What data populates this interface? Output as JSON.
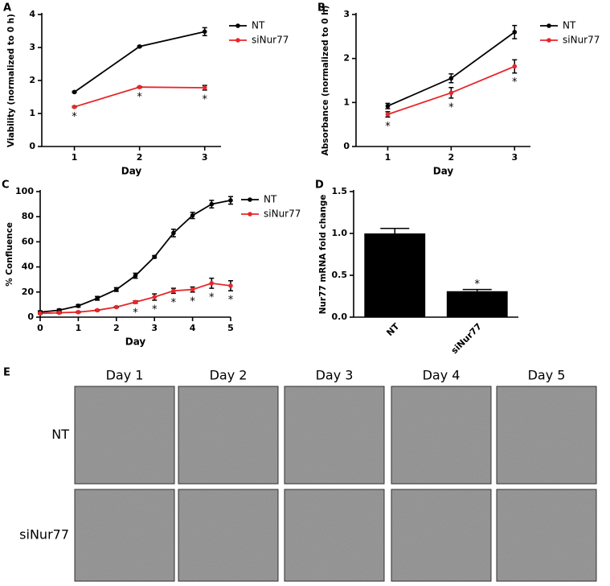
{
  "chart_data": [
    {
      "type": "line",
      "panel_label": "A",
      "xlabel": "Day",
      "ylabel": "Viability (normalized to 0 h)",
      "x": [
        1,
        2,
        3
      ],
      "xlim": [
        0.5,
        3.25
      ],
      "xticks": [
        1,
        2,
        3
      ],
      "ylim": [
        0,
        4
      ],
      "yticks": [
        0,
        1,
        2,
        3,
        4
      ],
      "legend": "upper right",
      "series": [
        {
          "name": "NT",
          "color": "#000000",
          "values": [
            1.65,
            3.03,
            3.48
          ],
          "errors": [
            0.02,
            0.02,
            0.12
          ]
        },
        {
          "name": "siNur77",
          "color": "#e8262a",
          "values": [
            1.2,
            1.8,
            1.78
          ],
          "errors": [
            0.02,
            0.02,
            0.07
          ]
        }
      ],
      "significance": {
        "label": "*",
        "x": [
          1,
          2,
          3
        ]
      }
    },
    {
      "type": "line",
      "panel_label": "B",
      "xlabel": "Day",
      "ylabel": "Absorbance (normalized to 0 h)",
      "x": [
        1,
        2,
        3
      ],
      "xlim": [
        0.5,
        3.25
      ],
      "xticks": [
        1,
        2,
        3
      ],
      "ylim": [
        0,
        3
      ],
      "yticks": [
        0,
        1,
        2,
        3
      ],
      "legend": "upper right",
      "series": [
        {
          "name": "NT",
          "color": "#000000",
          "values": [
            0.92,
            1.55,
            2.6
          ],
          "errors": [
            0.06,
            0.1,
            0.15
          ]
        },
        {
          "name": "siNur77",
          "color": "#e8262a",
          "values": [
            0.73,
            1.22,
            1.82
          ],
          "errors": [
            0.06,
            0.12,
            0.15
          ]
        }
      ],
      "significance": {
        "label": "*",
        "x": [
          1,
          2,
          3
        ]
      }
    },
    {
      "type": "line",
      "panel_label": "C",
      "xlabel": "Day",
      "ylabel": "% Confluence",
      "x": [
        0,
        0.5,
        1,
        1.5,
        2,
        2.5,
        3,
        3.5,
        4,
        4.5,
        5
      ],
      "xlim": [
        0,
        5
      ],
      "xticks": [
        0,
        1,
        2,
        3,
        4,
        5
      ],
      "ylim": [
        0,
        100
      ],
      "yticks": [
        0,
        20,
        40,
        60,
        80,
        100
      ],
      "legend": "upper right",
      "series": [
        {
          "name": "NT",
          "color": "#000000",
          "values": [
            4,
            5.5,
            9,
            15,
            22,
            33,
            48,
            67,
            81,
            90,
            93
          ],
          "errors": [
            1,
            1,
            1,
            1.5,
            1.5,
            2,
            1,
            3,
            2.5,
            3,
            3
          ]
        },
        {
          "name": "siNur77",
          "color": "#e8262a",
          "values": [
            3,
            3.5,
            4,
            5.5,
            8,
            12,
            16,
            21,
            22,
            27,
            25
          ],
          "errors": [
            0.5,
            0.5,
            0.5,
            0.5,
            0.5,
            1,
            2.5,
            2,
            2,
            4,
            4
          ]
        }
      ],
      "significance": {
        "label": "*",
        "x": [
          2.5,
          3,
          3.5,
          4,
          4.5,
          5
        ]
      }
    },
    {
      "type": "bar",
      "panel_label": "D",
      "ylabel": "Nur77 mRNA fold change",
      "categories": [
        "NT",
        "siNur77"
      ],
      "values": [
        1.0,
        0.31
      ],
      "errors": [
        0.06,
        0.02
      ],
      "color": "#000000",
      "ylim": [
        0,
        1.5
      ],
      "yticks": [
        {
          "value": 0,
          "label": "0.0"
        },
        {
          "value": 0.5,
          "label": "0.5"
        },
        {
          "value": 1,
          "label": "1.0"
        },
        {
          "value": 1.5,
          "label": "1.5"
        }
      ],
      "significance": {
        "label": "*",
        "categories": [
          1
        ]
      }
    }
  ],
  "panel_e": {
    "panel_label": "E",
    "columns": [
      "Day 1",
      "Day 2",
      "Day 3",
      "Day 4",
      "Day 5"
    ],
    "rows": [
      "NT",
      "siNur77"
    ]
  }
}
